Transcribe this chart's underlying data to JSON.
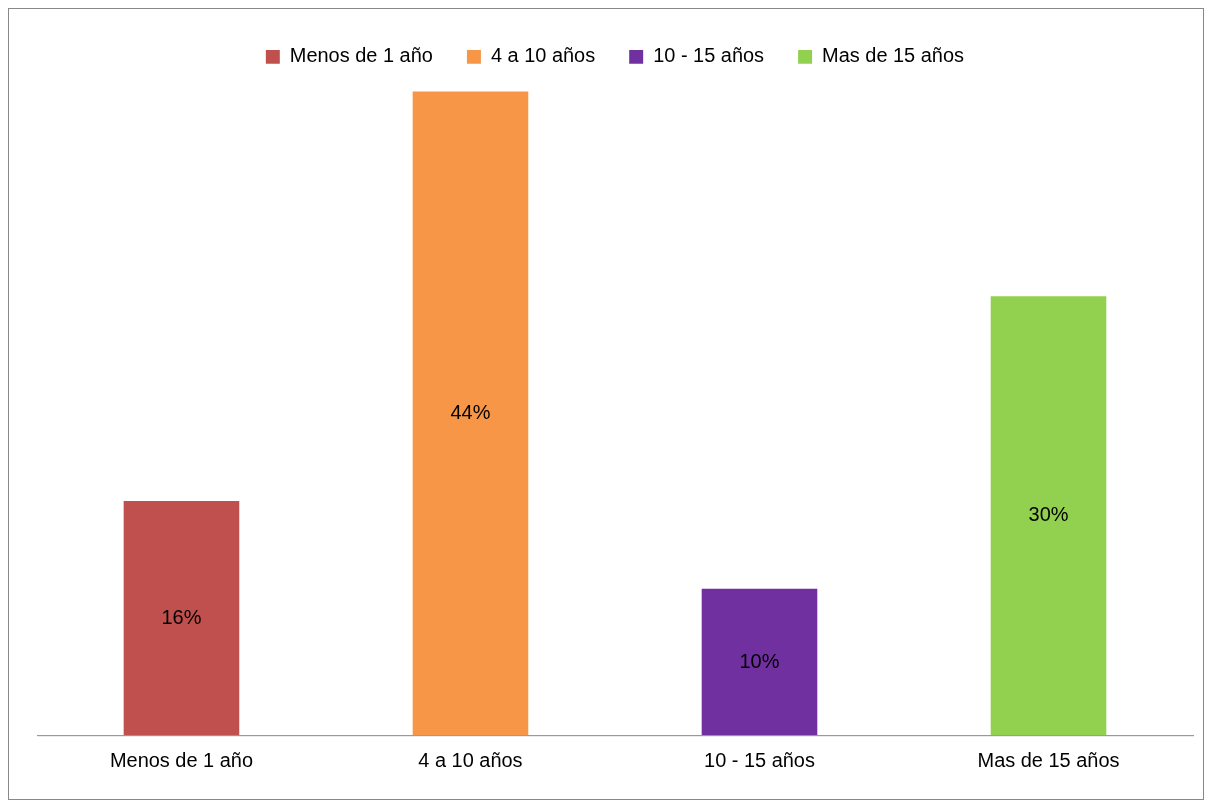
{
  "chart_data": {
    "type": "bar",
    "categories": [
      "Menos de 1 año",
      "4 a 10 años",
      "10 - 15 años",
      "Mas de 15 años"
    ],
    "series": [
      {
        "name": "Menos de 1 año",
        "color": "#c0504d",
        "values": [
          16,
          null,
          null,
          null
        ],
        "value_labels": [
          "16%",
          null,
          null,
          null
        ]
      },
      {
        "name": "4 a 10 años",
        "color": "#f79646",
        "values": [
          null,
          44,
          null,
          null
        ],
        "value_labels": [
          null,
          "44%",
          null,
          null
        ]
      },
      {
        "name": "10 - 15 años",
        "color": "#7030a0",
        "values": [
          null,
          null,
          10,
          null
        ],
        "value_labels": [
          null,
          null,
          "10%",
          null
        ]
      },
      {
        "name": "Mas de 15 años",
        "color": "#92d050",
        "values": [
          null,
          null,
          null,
          30
        ],
        "value_labels": [
          null,
          null,
          null,
          "30%"
        ]
      }
    ],
    "legend": "top",
    "grid": false
  }
}
